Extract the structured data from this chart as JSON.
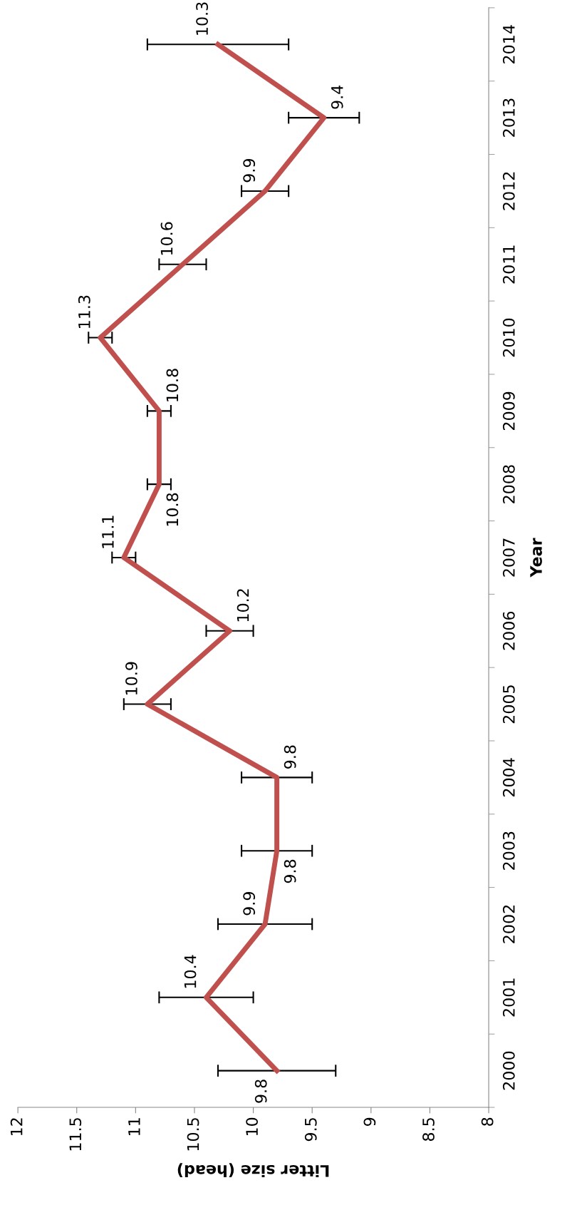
{
  "chart_data": {
    "type": "line",
    "orientation": "horizontal",
    "xlabel": "Litter size (head)",
    "ylabel": "Year",
    "categories": [
      "2014",
      "2013",
      "2012",
      "2011",
      "2010",
      "2009",
      "2008",
      "2007",
      "2006",
      "2005",
      "2004",
      "2003",
      "2002",
      "2001",
      "2000"
    ],
    "series": [
      {
        "color": "#c0504d",
        "values": [
          10.3,
          9.4,
          9.9,
          10.6,
          11.3,
          10.8,
          10.8,
          11.1,
          10.2,
          10.9,
          9.8,
          9.8,
          9.9,
          10.4,
          9.8
        ],
        "errors": [
          0.6,
          0.3,
          0.2,
          0.2,
          0.1,
          0.1,
          0.1,
          0.1,
          0.2,
          0.2,
          0.3,
          0.3,
          0.4,
          0.4,
          0.5
        ]
      }
    ],
    "xlim": [
      12,
      8
    ],
    "xticks": [
      12,
      11.5,
      11,
      10.5,
      10,
      9.5,
      9,
      8.5,
      8
    ],
    "data_labels": true,
    "line_style": "solid"
  }
}
